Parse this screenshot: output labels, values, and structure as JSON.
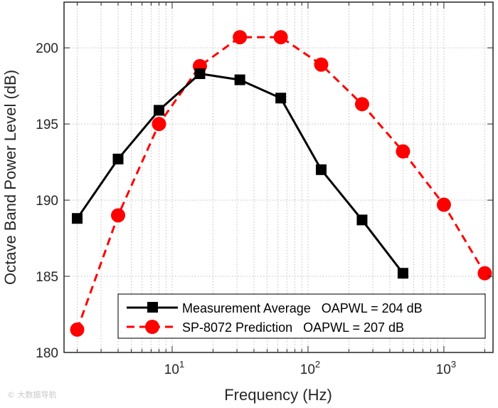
{
  "chart_data": {
    "type": "line",
    "xscale": "log",
    "xlim": [
      1.6,
      2300
    ],
    "ylim": [
      180,
      203
    ],
    "xlabel": "Frequency (Hz)",
    "ylabel": "Octave Band Power Level (dB)",
    "yticks": [
      180,
      185,
      190,
      195,
      200
    ],
    "ytick_labels": [
      "180",
      "185",
      "190",
      "195",
      "200"
    ],
    "xticks": [
      10,
      100,
      1000
    ],
    "xtick_labels": [
      {
        "base": "10",
        "exp": "1"
      },
      {
        "base": "10",
        "exp": "2"
      },
      {
        "base": "10",
        "exp": "3"
      }
    ],
    "grid": true,
    "legend_position": "bottom-right",
    "series": [
      {
        "name": "Measurement Average",
        "legend_label": "Measurement Average   OAPWL = 204 dB",
        "color": "#000000",
        "line_style": "solid",
        "marker": "square",
        "x": [
          2,
          4,
          8,
          16,
          31.5,
          63,
          125,
          250,
          500
        ],
        "y": [
          188.8,
          192.7,
          195.9,
          198.3,
          197.9,
          196.7,
          192.0,
          188.7,
          185.2
        ]
      },
      {
        "name": "SP-8072 Prediction",
        "legend_label": "SP-8072 Prediction   OAPWL = 207 dB",
        "color": "#ff0000",
        "line_style": "dashed",
        "marker": "circle",
        "x": [
          2,
          4,
          8,
          16,
          31.5,
          63,
          125,
          250,
          500,
          1000,
          2000
        ],
        "y": [
          181.5,
          189.0,
          195.0,
          198.8,
          200.7,
          200.7,
          198.9,
          196.3,
          193.2,
          189.7,
          185.2
        ]
      }
    ]
  },
  "watermark": "© 大数据导航"
}
